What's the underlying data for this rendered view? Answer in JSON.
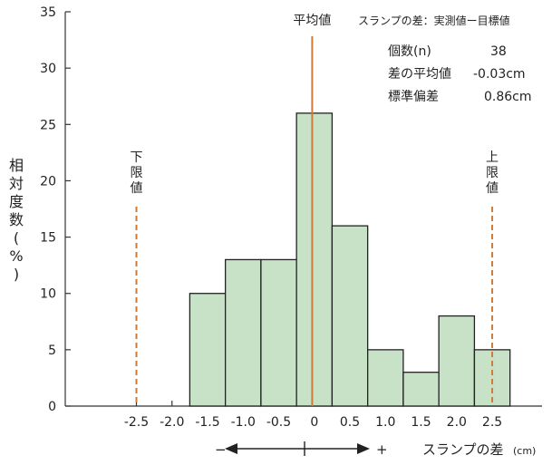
{
  "chart_data": {
    "type": "bar",
    "histogram": true,
    "x": {
      "bin_edges": [
        -1.75,
        -1.25,
        -0.75,
        -0.25,
        0.25,
        0.75,
        1.25,
        1.75,
        2.25,
        2.75
      ],
      "tick_values": [
        -2.5,
        -2.0,
        -1.5,
        -1.0,
        -0.5,
        0,
        0.5,
        1.0,
        1.5,
        2.0,
        2.5
      ],
      "tick_labels": [
        "-2.5",
        "-2.0",
        "-1.5",
        "-1.0",
        "-0.5",
        "0",
        "0.5",
        "1.0",
        "1.5",
        "2.0",
        "2.5"
      ],
      "xlim": [
        -3.5,
        3.2
      ]
    },
    "categories": [
      "-1.5",
      "-1.0",
      "-0.5",
      "0",
      "0.5",
      "1.0",
      "1.5",
      "2.0",
      "2.5"
    ],
    "values": [
      10,
      13,
      13,
      26,
      16,
      5,
      3,
      8,
      5
    ],
    "ylabel": "相対度数(%)",
    "ylim": [
      0,
      35
    ],
    "y_ticks": [
      0,
      5,
      10,
      15,
      20,
      25,
      30,
      35
    ],
    "xlabel": "スランプの差",
    "xlabel_unit": "(cm)",
    "bar_color": "#c8e2c8",
    "grid": false,
    "reference_lines": [
      {
        "label": "平均値",
        "x": -0.03,
        "color": "#d07a35",
        "style": "solid"
      },
      {
        "label": "下限値",
        "x": -2.5,
        "color": "#d07a35",
        "style": "dashed"
      },
      {
        "label": "上限値",
        "x": 2.5,
        "color": "#d07a35",
        "style": "dashed"
      }
    ],
    "legend": {
      "title": "スランプの差：実測値ー目標値",
      "stats": [
        {
          "label": "個数(n)",
          "value": "38"
        },
        {
          "label": "差の平均値",
          "value": "-0.03cm"
        },
        {
          "label": "標準偏差",
          "value": "0.86cm"
        }
      ]
    },
    "direction_indicator": {
      "minus": "−",
      "plus": "+"
    }
  }
}
